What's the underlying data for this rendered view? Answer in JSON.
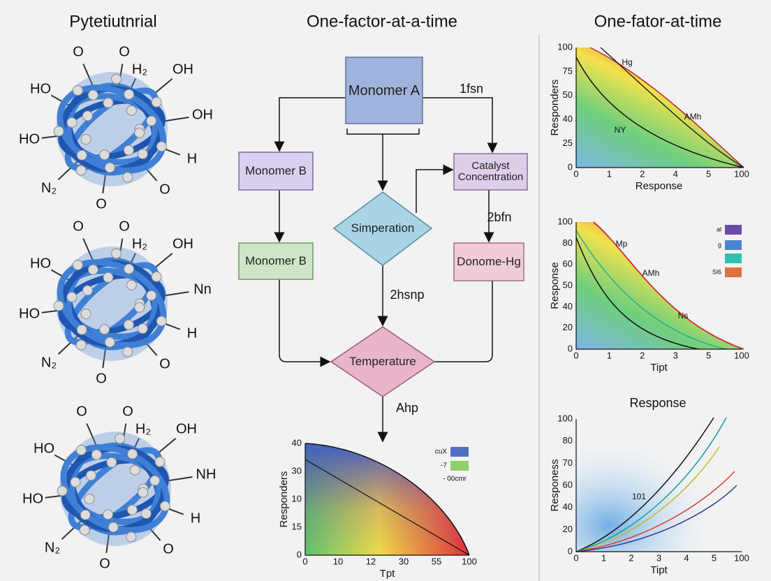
{
  "left_panel": {
    "title": "Pytetiutnrial",
    "molecules": [
      {
        "labels": [
          "O",
          "O",
          "H₂",
          "OH",
          "HO",
          "OH",
          "HO",
          "H",
          "N₂",
          "O",
          "O"
        ]
      },
      {
        "labels": [
          "O",
          "O",
          "H₂",
          "OH",
          "HO",
          "Nn",
          "HO",
          "H",
          "N₂",
          "O",
          "O"
        ]
      },
      {
        "labels": [
          "O",
          "O",
          "H₂",
          "OH",
          "HO",
          "NH",
          "HO",
          "H",
          "N₂",
          "O",
          "O"
        ]
      }
    ]
  },
  "flowchart": {
    "title": "One-factor-at-a-time",
    "nodes": [
      {
        "label": "Monomer A"
      },
      {
        "label": "Monomer B"
      },
      {
        "label": "Catalyst Concentration"
      },
      {
        "label": "Simperation"
      },
      {
        "label": "Monomer B"
      },
      {
        "label": "Donome-Hg"
      },
      {
        "label": "Temperature"
      }
    ],
    "edge_labels": [
      "1fsn",
      "2bfn",
      "2hsnp",
      "Ahp"
    ]
  },
  "bottom_chart": {
    "y_label": "Responders",
    "x_label": "Tpt",
    "yticks": [
      40,
      30,
      10,
      15,
      0
    ],
    "xticks": [
      0,
      10,
      12,
      30,
      55,
      100
    ],
    "legend": [
      "cuX",
      "-7",
      "- 00cmr"
    ]
  },
  "right_charts": [
    {
      "title": "One-fator-at-time",
      "y_label": "Responders",
      "x_label": "Response",
      "yticks": [
        100,
        75,
        50,
        40,
        25,
        0
      ],
      "xticks": [
        0,
        1,
        2,
        4,
        5,
        100
      ],
      "annotations": [
        "Hg",
        "AMh",
        "NY"
      ]
    },
    {
      "y_label": "Response",
      "x_label": "Tipt",
      "yticks": [
        100,
        80,
        60,
        50,
        40,
        20,
        0
      ],
      "xticks": [
        0,
        1,
        2,
        3,
        5,
        100
      ],
      "annotations": [
        "Mp",
        "AMh",
        "Ns"
      ],
      "legend": [
        "al",
        "g",
        "Sl6"
      ]
    },
    {
      "title": "Response",
      "y_label": "Responess",
      "x_label": "Tipt",
      "yticks": [
        100,
        80,
        70,
        60,
        40,
        20,
        0
      ],
      "xticks": [
        0,
        1,
        2,
        3,
        4,
        5,
        100
      ],
      "annotations": [
        "101"
      ]
    }
  ]
}
